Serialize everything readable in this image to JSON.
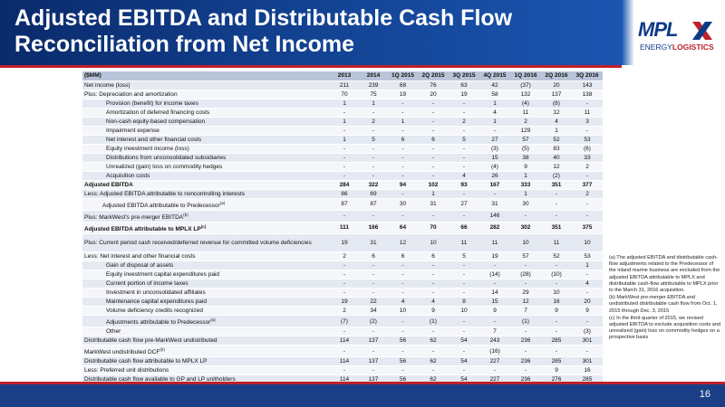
{
  "header": {
    "title_line1": "Adjusted EBITDA and Distributable Cash Flow",
    "title_line2": "Reconciliation from Net Income",
    "accent": "#c0202a",
    "brand_blue": "#12408f"
  },
  "logo": {
    "wordmark": "MPL",
    "tagline_prefix": "ENERGY",
    "tagline_suffix": "LOGISTICS"
  },
  "table": {
    "columns": [
      "($MM)",
      "2013",
      "2014",
      "1Q 2015",
      "2Q 2015",
      "3Q 2015",
      "4Q 2015",
      "1Q 2016",
      "2Q 2016",
      "3Q 2016"
    ],
    "rows": [
      {
        "label": "Net income (loss)",
        "v": [
          "211",
          "239",
          "68",
          "76",
          "63",
          "42",
          "(37)",
          "20",
          "143"
        ]
      },
      {
        "label": "Plus:  Depreciation and amortization",
        "v": [
          "70",
          "75",
          "19",
          "20",
          "19",
          "58",
          "132",
          "137",
          "138"
        ]
      },
      {
        "label": "Provision (benefit) for income taxes",
        "v": [
          "1",
          "1",
          "-",
          "-",
          "-",
          "1",
          "(4)",
          "(8)",
          "-"
        ]
      },
      {
        "label": "Amortization of deferred financing costs",
        "v": [
          "-",
          "-",
          "-",
          "-",
          "-",
          "4",
          "11",
          "12",
          "11"
        ]
      },
      {
        "label": "Non-cash equity-based compensation",
        "v": [
          "1",
          "2",
          "1",
          "-",
          "2",
          "1",
          "2",
          "4",
          "3"
        ]
      },
      {
        "label": "Impairment expense",
        "v": [
          "-",
          "-",
          "-",
          "-",
          "-",
          "-",
          "129",
          "1",
          "-"
        ]
      },
      {
        "label": "Net interest and other financial costs",
        "v": [
          "1",
          "5",
          "6",
          "6",
          "5",
          "27",
          "57",
          "52",
          "53"
        ]
      },
      {
        "label": "Equity investment income (loss)",
        "v": [
          "-",
          "-",
          "-",
          "-",
          "-",
          "(3)",
          "(5)",
          "83",
          "(6)"
        ]
      },
      {
        "label": "Distributions from unconsolidated subsidiaries",
        "v": [
          "-",
          "-",
          "-",
          "-",
          "-",
          "15",
          "38",
          "40",
          "33"
        ]
      },
      {
        "label": "Unrealized (gain) loss on commodity hedges",
        "v": [
          "-",
          "-",
          "-",
          "-",
          "-",
          "(4)",
          "9",
          "12",
          "2"
        ]
      },
      {
        "label": "Acquisition costs",
        "v": [
          "-",
          "-",
          "-",
          "-",
          "4",
          "26",
          "1",
          "(2)",
          "-"
        ]
      },
      {
        "label": "Adjusted EBITDA",
        "v": [
          "284",
          "322",
          "94",
          "102",
          "93",
          "167",
          "333",
          "351",
          "377"
        ]
      },
      {
        "label": "Less:  Adjusted EBITDA attributable to noncontrolling interests",
        "v": [
          "86",
          "69",
          "-",
          "1",
          "-",
          "-",
          "1",
          "-",
          "2"
        ]
      },
      {
        "label": "Adjusted EBITDA attributable to Predecessor",
        "sup": "(a)",
        "v": [
          "87",
          "87",
          "30",
          "31",
          "27",
          "31",
          "30",
          "-",
          "-"
        ]
      },
      {
        "label": "Plus:  MarkWest's pre-merger EBITDA",
        "sup": "(b)",
        "v": [
          "-",
          "-",
          "-",
          "-",
          "-",
          "146",
          "-",
          "-",
          "-"
        ]
      },
      {
        "label": "Adjusted EBITDA attributable to MPLX LP",
        "sup": "(c)",
        "v": [
          "111",
          "166",
          "64",
          "70",
          "66",
          "282",
          "302",
          "351",
          "375"
        ]
      },
      {
        "label": "Plus:  Current period cash received/deferred revenue for committed volume deficiencies",
        "v": [
          "19",
          "31",
          "12",
          "10",
          "11",
          "11",
          "10",
          "11",
          "10"
        ]
      },
      {
        "label": "Less:  Net interest and other financial costs",
        "v": [
          "2",
          "6",
          "6",
          "6",
          "5",
          "19",
          "57",
          "52",
          "53"
        ]
      },
      {
        "label": "Gain of disposal of assets",
        "v": [
          "-",
          "-",
          "-",
          "-",
          "-",
          "-",
          "-",
          "-",
          "1"
        ]
      },
      {
        "label": "Equity investment capital expenditures paid",
        "v": [
          "-",
          "-",
          "-",
          "-",
          "-",
          "(14)",
          "(28)",
          "(10)",
          "-"
        ]
      },
      {
        "label": "Current portion of income taxes",
        "v": [
          "-",
          "-",
          "-",
          "-",
          "-",
          "-",
          "-",
          "-",
          "4"
        ]
      },
      {
        "label": "Investment in unconsolidated affiliates",
        "v": [
          "-",
          "-",
          "-",
          "-",
          "-",
          "14",
          "29",
          "10",
          "-"
        ]
      },
      {
        "label": "Maintenance capital expenditures paid",
        "v": [
          "19",
          "22",
          "4",
          "4",
          "8",
          "15",
          "12",
          "16",
          "20"
        ]
      },
      {
        "label": "Volume deficiency credits recognized",
        "v": [
          "2",
          "34",
          "10",
          "9",
          "10",
          "9",
          "7",
          "9",
          "9"
        ]
      },
      {
        "label": "Adjustments attributable to Predecessor",
        "sup": "(a)",
        "v": [
          "(7)",
          "(2)",
          "-",
          "(1)",
          "-",
          "-",
          "(1)",
          "-",
          "-"
        ]
      },
      {
        "label": "Other",
        "v": [
          "-",
          "-",
          "-",
          "-",
          "-",
          "7",
          "-",
          "-",
          "(3)"
        ]
      },
      {
        "label": "Distributable cash flow pre-MarkWest undistributed",
        "v": [
          "114",
          "137",
          "56",
          "62",
          "54",
          "243",
          "236",
          "285",
          "301"
        ]
      },
      {
        "label": "MarkWest undistributed DCF",
        "sup": "(b)",
        "v": [
          "-",
          "-",
          "-",
          "-",
          "-",
          "(16)",
          "-",
          "-",
          "-"
        ]
      },
      {
        "label": "Distributable cash flow attributable to MPLX LP",
        "v": [
          "114",
          "137",
          "56",
          "62",
          "54",
          "227",
          "236",
          "285",
          "301"
        ]
      },
      {
        "label": "Less:  Preferred unit distributions",
        "v": [
          "-",
          "-",
          "-",
          "-",
          "-",
          "-",
          "-",
          "9",
          "16"
        ]
      },
      {
        "label": "Distributable cash flow available to GP and LP unitholders",
        "v": [
          "114",
          "137",
          "56",
          "62",
          "54",
          "227",
          "236",
          "276",
          "285"
        ]
      }
    ]
  },
  "footnotes": {
    "a": "(a) The adjusted EBITDA and distributable cash-flow adjustments related to the Predecessor of the inland marine business are excluded from the adjusted EBITDA attributable to MPLX and distributable cash-flow attributable to MPLX prior to the March 31, 2016 acquisition.",
    "b": "(b) MarkWest pre-merger EBITDA and undistributed distributable cash flow from Oct. 1, 2015 through Dec. 3, 2015",
    "c": "(c) In the third quarter of 2015, we revised adjusted EBITDA to exclude acquisition costs and unrealized (gain) loss on commodity hedges on a prospective basis"
  },
  "footer": {
    "page_number": "16"
  }
}
